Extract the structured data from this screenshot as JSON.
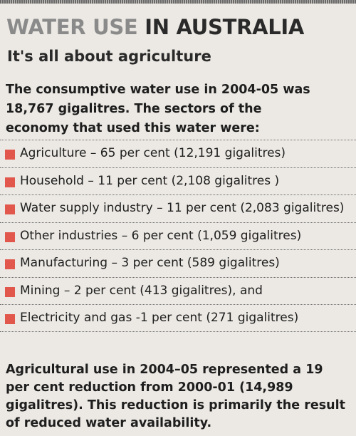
{
  "headline": {
    "part1": "WATER USE ",
    "part2": "IN AUSTRALIA"
  },
  "subtitle": "It's all about agriculture",
  "intro": "The consumptive water use in 2004-05 was 18,767 gigalitres. The sectors of the economy that used this water were:",
  "sectors": [
    {
      "text": "Agriculture – 65 per cent (12,191 gigalitres)"
    },
    {
      "text": "Household – 11 per cent (2,108 gigalitres )"
    },
    {
      "text": "Water supply industry – 11 per cent (2,083 gigalitres)"
    },
    {
      "text": "Other industries – 6 per cent (1,059 gigalitres)"
    },
    {
      "text": "Manufacturing – 3 per cent (589 gigalitres)"
    },
    {
      "text": "Mining – 2 per cent (413 gigalitres), and"
    },
    {
      "text": "Electricity and gas -1 per cent (271 gigalitres)"
    }
  ],
  "outro": "Agricultural use in 2004–05 represented a 19 per cent reduction from 2000-01 (14,989 gigalitres). This reduction is primarily the result of reduced water availability.",
  "colors": {
    "bullet": "#e2574c",
    "headline_light": "#8a8a8a",
    "headline_dark": "#2a2a2a"
  }
}
